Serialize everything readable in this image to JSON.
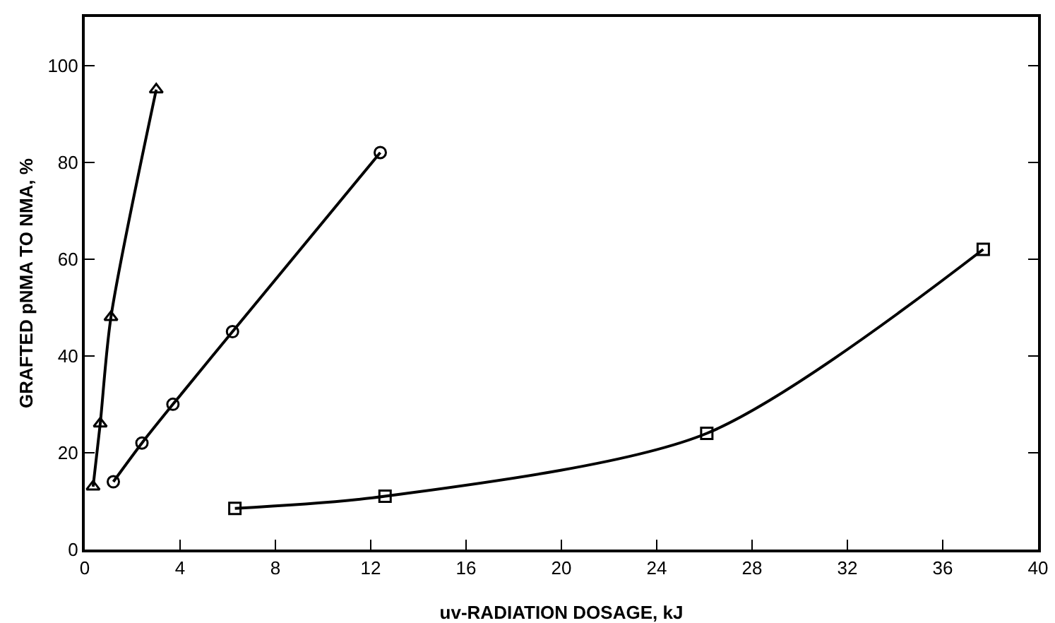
{
  "chart_data": {
    "type": "line",
    "xlabel": "uv-RADIATION DOSAGE, kJ",
    "ylabel": "GRAFTED pNMA TO NMA, %",
    "series": [
      {
        "color": "#000000",
        "marker": "triangle",
        "x": [
          0.35,
          0.65,
          1.1,
          3.0
        ],
        "values": [
          13,
          26,
          48,
          95
        ]
      },
      {
        "color": "#000000",
        "marker": "circle",
        "x": [
          1.2,
          2.4,
          3.7,
          6.2,
          12.4
        ],
        "values": [
          14,
          22,
          30,
          45,
          82
        ]
      },
      {
        "color": "#000000",
        "marker": "square",
        "x": [
          6.3,
          12.6,
          26.1,
          37.7
        ],
        "values": [
          8.5,
          11,
          24,
          62
        ]
      }
    ],
    "xlim": [
      0,
      40
    ],
    "xticks": [
      0,
      4,
      8,
      12,
      16,
      20,
      24,
      28,
      32,
      36,
      40
    ],
    "ylim": [
      0,
      110
    ],
    "yticks": [
      0,
      20,
      40,
      60,
      80,
      100
    ],
    "grid": false,
    "line_style": "solid"
  }
}
